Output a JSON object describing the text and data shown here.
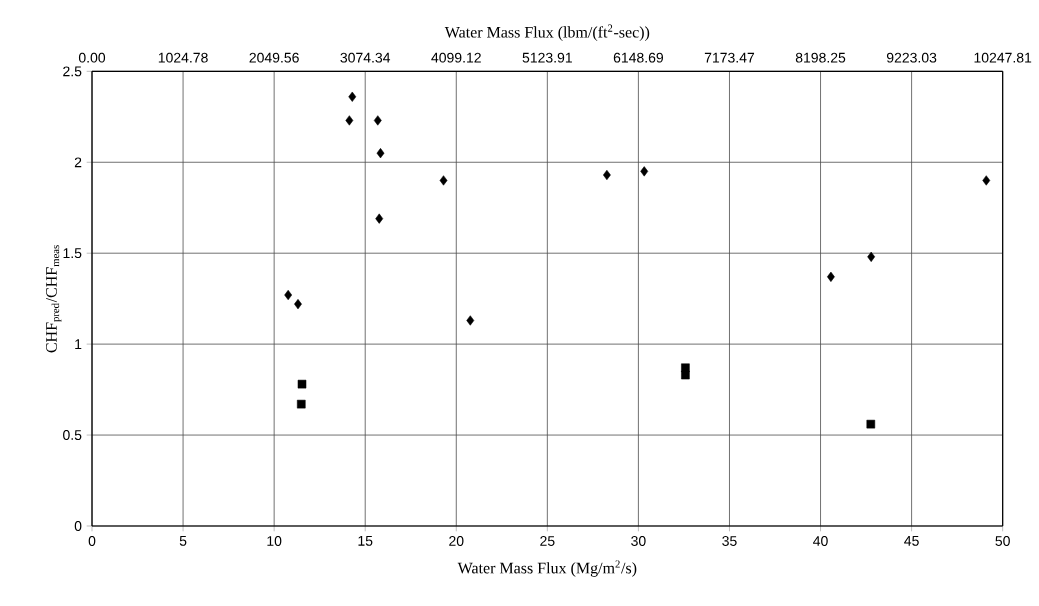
{
  "chart_data": {
    "type": "scatter",
    "xlabel": "Water Mass Flux (Mg/m$^{2}$/s)",
    "ylabel": "CHF$_{pred}$/CHF$_{meas}$",
    "x2label": "Water Mass Flux (lbm/(ft$^{2}$-sec))",
    "xlim": [
      0,
      50
    ],
    "xticks": [
      0,
      5,
      10,
      15,
      20,
      25,
      30,
      35,
      40,
      45,
      50
    ],
    "ylim": [
      0,
      2.5
    ],
    "yticks": [
      0,
      0.5,
      1,
      1.5,
      2,
      2.5
    ],
    "x2lim": [
      0,
      10247.81
    ],
    "x2ticks": [
      {
        "value": 0,
        "label": "0.00"
      },
      1024.78,
      2049.56,
      3074.34,
      4099.12,
      5123.91,
      6148.69,
      7173.47,
      8198.25,
      9223.03,
      10247.81
    ],
    "grid": true,
    "series": [
      {
        "color": "#000000",
        "marker": "diamond",
        "x": [
          14.29,
          14.13,
          15.69,
          15.84,
          19.3,
          15.77,
          28.27,
          30.32,
          10.77,
          11.31,
          20.77,
          49.1,
          42.78,
          40.57
        ],
        "values": [
          2.36,
          2.23,
          2.23,
          2.05,
          1.9,
          1.69,
          1.93,
          1.95,
          1.27,
          1.22,
          1.13,
          1.9,
          1.48,
          1.37
        ]
      },
      {
        "color": "#000000",
        "marker": "square",
        "x": [
          11.53,
          11.49,
          32.58,
          32.58,
          42.76
        ],
        "values": [
          0.78,
          0.67,
          0.87,
          0.83,
          0.56
        ]
      }
    ]
  }
}
